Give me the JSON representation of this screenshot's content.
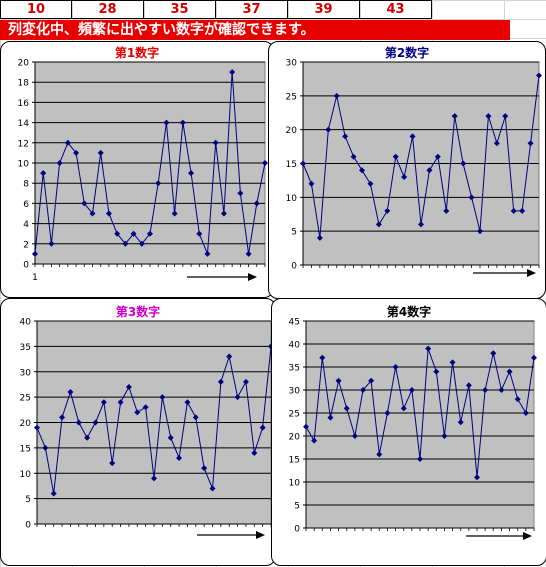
{
  "header": {
    "numbers": [
      "10",
      "28",
      "35",
      "37",
      "39",
      "43"
    ],
    "banner_text": "列変化中、頻繁に出やすい数字が確認できます。"
  },
  "colors": {
    "accent_red": "#e60000",
    "number_red": "#d00000",
    "plot_bg": "#c0c0c0",
    "series": "#000080"
  },
  "chart_data": [
    {
      "type": "line",
      "title": "第1数字",
      "title_color": "#e00000",
      "ylim": [
        0,
        20
      ],
      "yticks": [
        0,
        2,
        4,
        6,
        8,
        10,
        12,
        14,
        16,
        18,
        20
      ],
      "xtick_labels": [
        "1"
      ],
      "values": [
        1,
        9,
        2,
        10,
        12,
        11,
        6,
        5,
        11,
        5,
        3,
        2,
        3,
        2,
        3,
        8,
        14,
        5,
        14,
        9,
        3,
        1,
        12,
        5,
        19,
        7,
        1,
        6,
        10
      ],
      "legend": "",
      "grid": true
    },
    {
      "type": "line",
      "title": "第2数字",
      "title_color": "#000080",
      "ylim": [
        0,
        30
      ],
      "yticks": [
        0,
        5,
        10,
        15,
        20,
        25,
        30
      ],
      "values": [
        15,
        12,
        4,
        20,
        25,
        19,
        16,
        14,
        12,
        6,
        8,
        16,
        13,
        19,
        6,
        14,
        16,
        8,
        22,
        15,
        10,
        5,
        22,
        18,
        22,
        8,
        8,
        18,
        28
      ],
      "grid": true
    },
    {
      "type": "line",
      "title": "第3数字",
      "title_color": "#cc00cc",
      "ylim": [
        0,
        40
      ],
      "yticks": [
        0,
        5,
        10,
        15,
        20,
        25,
        30,
        35,
        40
      ],
      "values": [
        19,
        15,
        6,
        21,
        26,
        20,
        17,
        20,
        24,
        12,
        24,
        27,
        22,
        23,
        9,
        25,
        17,
        13,
        24,
        21,
        11,
        7,
        28,
        33,
        25,
        28,
        14,
        19,
        35
      ],
      "grid": true
    },
    {
      "type": "line",
      "title": "第4数字",
      "title_color": "#000000",
      "ylim": [
        0,
        45
      ],
      "yticks": [
        0,
        5,
        10,
        15,
        20,
        25,
        30,
        35,
        40,
        45
      ],
      "values": [
        22,
        19,
        37,
        24,
        32,
        26,
        20,
        30,
        32,
        16,
        25,
        35,
        26,
        30,
        15,
        39,
        34,
        20,
        36,
        23,
        31,
        11,
        30,
        38,
        30,
        34,
        28,
        25,
        37
      ],
      "grid": true
    }
  ]
}
